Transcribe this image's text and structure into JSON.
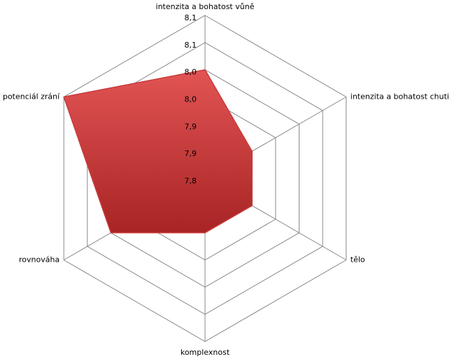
{
  "chart_data": {
    "type": "radar",
    "categories": [
      "intenzita a bohatost vůně",
      "intenzita a bohatost chuti",
      "tělo",
      "komplexnost",
      "rovnováha",
      "potenciál zrání"
    ],
    "values": [
      8.0,
      7.9,
      7.9,
      7.9,
      8.0,
      8.1
    ],
    "color": "#c83a3a",
    "rlim": [
      7.8,
      8.1
    ],
    "rticks": [
      {
        "value": 7.8,
        "label": "7,8"
      },
      {
        "value": 7.85,
        "label": "7,9"
      },
      {
        "value": 7.9,
        "label": "7,9"
      },
      {
        "value": 7.95,
        "label": "8,0"
      },
      {
        "value": 8.0,
        "label": "8,0"
      },
      {
        "value": 8.05,
        "label": "8,1"
      },
      {
        "value": 8.1,
        "label": "8,1"
      }
    ],
    "grid": true
  }
}
